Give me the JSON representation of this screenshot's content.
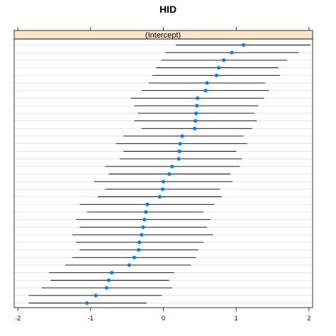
{
  "chart_data": {
    "type": "dotplot",
    "title": "HID",
    "panel_label": "(Intercept)",
    "xlim": [
      -2.05,
      2.05
    ],
    "x_ticks": [
      -2,
      -1,
      0,
      1,
      2
    ],
    "x_tick_labels": [
      "-2",
      "-1",
      "0",
      "1",
      "2"
    ],
    "point_color": "#0080ff",
    "strip_color": "#ffe5cc",
    "grid": true,
    "rows": [
      {
        "est": 1.1,
        "lo": 0.17,
        "hi": 2.02
      },
      {
        "est": 0.94,
        "lo": 0.03,
        "hi": 1.86
      },
      {
        "est": 0.83,
        "lo": -0.03,
        "hi": 1.7
      },
      {
        "est": 0.76,
        "lo": -0.1,
        "hi": 1.58
      },
      {
        "est": 0.73,
        "lo": -0.15,
        "hi": 1.6
      },
      {
        "est": 0.6,
        "lo": -0.2,
        "hi": 1.4
      },
      {
        "est": 0.58,
        "lo": -0.3,
        "hi": 1.45
      },
      {
        "est": 0.47,
        "lo": -0.45,
        "hi": 1.38
      },
      {
        "est": 0.46,
        "lo": -0.4,
        "hi": 1.3
      },
      {
        "est": 0.45,
        "lo": -0.35,
        "hi": 1.25
      },
      {
        "est": 0.44,
        "lo": -0.4,
        "hi": 1.28
      },
      {
        "est": 0.43,
        "lo": -0.3,
        "hi": 1.22
      },
      {
        "est": 0.26,
        "lo": -0.55,
        "hi": 1.1
      },
      {
        "est": 0.23,
        "lo": -0.65,
        "hi": 1.15
      },
      {
        "est": 0.22,
        "lo": -0.55,
        "hi": 1.0
      },
      {
        "est": 0.21,
        "lo": -0.6,
        "hi": 1.08
      },
      {
        "est": 0.12,
        "lo": -0.8,
        "hi": 1.05
      },
      {
        "est": 0.08,
        "lo": -0.75,
        "hi": 0.92
      },
      {
        "est": 0.0,
        "lo": -0.95,
        "hi": 0.95
      },
      {
        "est": -0.01,
        "lo": -0.8,
        "hi": 0.78
      },
      {
        "est": -0.05,
        "lo": -0.9,
        "hi": 0.8
      },
      {
        "est": -0.22,
        "lo": -1.15,
        "hi": 0.7
      },
      {
        "est": -0.24,
        "lo": -1.05,
        "hi": 0.55
      },
      {
        "est": -0.26,
        "lo": -1.2,
        "hi": 0.65
      },
      {
        "est": -0.28,
        "lo": -1.15,
        "hi": 0.6
      },
      {
        "est": -0.3,
        "lo": -1.25,
        "hi": 0.68
      },
      {
        "est": -0.33,
        "lo": -1.2,
        "hi": 0.55
      },
      {
        "est": -0.34,
        "lo": -1.15,
        "hi": 0.48
      },
      {
        "est": -0.4,
        "lo": -1.25,
        "hi": 0.45
      },
      {
        "est": -0.47,
        "lo": -1.35,
        "hi": 0.38
      },
      {
        "est": -0.71,
        "lo": -1.57,
        "hi": 0.15
      },
      {
        "est": -0.75,
        "lo": -1.55,
        "hi": 0.08
      },
      {
        "est": -0.78,
        "lo": -1.67,
        "hi": 0.12
      },
      {
        "est": -0.93,
        "lo": -1.85,
        "hi": -0.02
      },
      {
        "est": -1.05,
        "lo": -1.85,
        "hi": -0.23
      }
    ]
  }
}
